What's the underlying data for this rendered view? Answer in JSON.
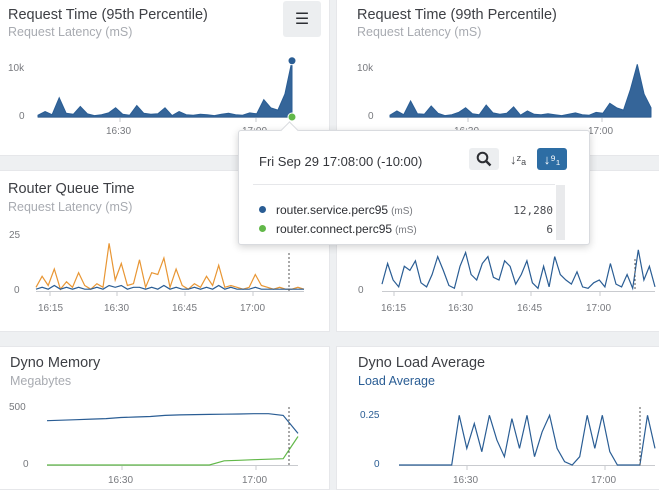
{
  "colors": {
    "blue": "#2a5d94",
    "orange": "#e89634",
    "green": "#62b849",
    "accent_button": "#2d6da4"
  },
  "panels": [
    {
      "title": "Request Time (95th Percentile)",
      "subtitle": "Request Latency (mS)",
      "y_ticks": [
        "10k",
        "0"
      ],
      "x_ticks": [
        "16:30",
        "17:00"
      ]
    },
    {
      "title": "Request Time (99th Percentile)",
      "subtitle": "Request Latency (mS)",
      "y_ticks": [
        "10k",
        "0"
      ],
      "x_ticks": [
        "16:30",
        "17:00"
      ]
    },
    {
      "title": "Router Queue Time",
      "subtitle": "Request Latency (mS)",
      "y_ticks": [
        "25",
        "0"
      ],
      "x_ticks": [
        "16:15",
        "16:30",
        "16:45",
        "17:00"
      ]
    },
    {
      "title": "",
      "subtitle": "",
      "y_ticks": [
        "0"
      ],
      "x_ticks": [
        "16:15",
        "16:30",
        "16:45",
        "17:00"
      ]
    },
    {
      "title": "Dyno Memory",
      "subtitle": "Megabytes",
      "y_ticks": [
        "500",
        "0"
      ],
      "x_ticks": [
        "16:30",
        "17:00"
      ]
    },
    {
      "title": "Dyno Load Average",
      "subtitle": "Load Average",
      "y_ticks": [
        "0.25",
        "0"
      ],
      "x_ticks": [
        "16:30",
        "17:00"
      ]
    }
  ],
  "menu_icon": "hamburger-icon",
  "tooltip": {
    "timestamp": "Fri Sep 29 17:08:00 (-10:00)",
    "zoom_icon": "magnifier-icon",
    "sort_alpha_icon": "sort-alpha-icon",
    "sort_numeric_icon": "sort-numeric-icon",
    "sort_alpha_glyph": "↓ᶻₐ",
    "sort_numeric_glyph": "↓⁹₁",
    "rows": [
      {
        "name": "router.service.perc95",
        "unit": "(mS)",
        "value": "12,280",
        "color": "#2a5d94"
      },
      {
        "name": "router.connect.perc95",
        "unit": "(mS)",
        "value": "6",
        "color": "#62b849"
      }
    ]
  },
  "chart_data": [
    {
      "type": "area",
      "title": "Request Time (95th Percentile)",
      "ylabel": "Request Latency (mS)",
      "ylim": [
        0,
        12000
      ],
      "series": [
        {
          "name": "router.service.perc95",
          "values": [
            400,
            1200,
            500,
            4200,
            800,
            600,
            2300,
            700,
            300,
            500,
            900,
            2000,
            600,
            400,
            2500,
            800,
            600,
            700,
            2000,
            300,
            1200,
            500,
            400,
            600,
            500,
            300,
            600,
            800,
            500,
            400,
            900,
            700,
            3800,
            2000,
            1500,
            5000,
            12280
          ]
        },
        {
          "name": "router.connect.perc95",
          "values": [
            0,
            0,
            0,
            0,
            0,
            0,
            0,
            0,
            0,
            0,
            0,
            0,
            0,
            0,
            0,
            0,
            0,
            0,
            0,
            0,
            0,
            0,
            0,
            0,
            0,
            0,
            0,
            0,
            0,
            0,
            0,
            0,
            0,
            0,
            0,
            0,
            6
          ]
        }
      ]
    },
    {
      "type": "area",
      "title": "Request Time (99th Percentile)",
      "ylabel": "Request Latency (mS)",
      "ylim": [
        0,
        12000
      ],
      "series": [
        {
          "values": [
            400,
            1300,
            500,
            3500,
            700,
            600,
            2400,
            800,
            300,
            500,
            1000,
            2000,
            700,
            500,
            2600,
            900,
            600,
            800,
            2200,
            400,
            1300,
            600,
            500,
            700,
            500,
            300,
            600,
            900,
            500,
            400,
            1000,
            800,
            3000,
            2000,
            1500,
            6000,
            11500,
            5000,
            2000
          ]
        }
      ]
    },
    {
      "type": "line",
      "title": "Router Queue Time",
      "ylabel": "Request Latency (mS)",
      "ylim": [
        0,
        30
      ],
      "series": [
        {
          "values": [
            2,
            8,
            3,
            12,
            1,
            5,
            2,
            10,
            3,
            1,
            4,
            2,
            26,
            6,
            15,
            3,
            4,
            17,
            2,
            10,
            9,
            18,
            2,
            12,
            3,
            1,
            4,
            2,
            8,
            3,
            14,
            2,
            3,
            2,
            1,
            2,
            9,
            3,
            2,
            1,
            2,
            1,
            1,
            2,
            1
          ]
        },
        {
          "values": [
            1,
            2,
            1,
            3,
            1,
            2,
            1,
            2,
            1,
            1,
            2,
            1,
            3,
            2,
            3,
            1,
            2,
            2,
            1,
            2,
            1,
            3,
            1,
            2,
            1,
            1,
            2,
            1,
            2,
            1,
            3,
            1,
            2,
            1,
            1,
            1,
            2,
            1,
            1,
            1,
            1,
            1,
            1,
            1,
            1
          ]
        }
      ]
    },
    {
      "type": "line",
      "ylim": [
        0,
        40
      ],
      "series": [
        {
          "values": [
            5,
            20,
            8,
            3,
            18,
            15,
            22,
            6,
            3,
            12,
            25,
            15,
            4,
            2,
            18,
            28,
            12,
            8,
            20,
            25,
            10,
            8,
            22,
            18,
            5,
            12,
            22,
            6,
            2,
            18,
            3,
            25,
            12,
            8,
            5,
            14,
            3,
            2,
            6,
            8,
            3,
            20,
            5,
            3,
            12,
            2,
            30,
            8,
            18,
            3
          ]
        }
      ]
    },
    {
      "type": "line",
      "title": "Dyno Memory",
      "ylabel": "Megabytes",
      "ylim": [
        0,
        550
      ],
      "series": [
        {
          "values": [
            420,
            425,
            430,
            435,
            440,
            450,
            455,
            460,
            470,
            475,
            478,
            480,
            482,
            484,
            486,
            486,
            470,
            300
          ]
        },
        {
          "values": [
            0,
            0,
            0,
            0,
            0,
            0,
            0,
            0,
            0,
            0,
            0,
            0,
            40,
            45,
            50,
            55,
            60,
            270
          ]
        }
      ]
    },
    {
      "type": "line",
      "title": "Dyno Load Average",
      "ylabel": "Load Average",
      "ylim": [
        0,
        0.35
      ],
      "series": [
        {
          "values": [
            0,
            0,
            0,
            0,
            0,
            0,
            0,
            0,
            0.3,
            0.1,
            0.25,
            0.08,
            0.3,
            0.15,
            0.05,
            0.28,
            0.1,
            0.3,
            0.05,
            0.2,
            0.3,
            0.1,
            0.02,
            0,
            0.05,
            0.3,
            0.1,
            0.3,
            0.08,
            0,
            0,
            0,
            0,
            0.3,
            0.1
          ]
        }
      ]
    }
  ]
}
